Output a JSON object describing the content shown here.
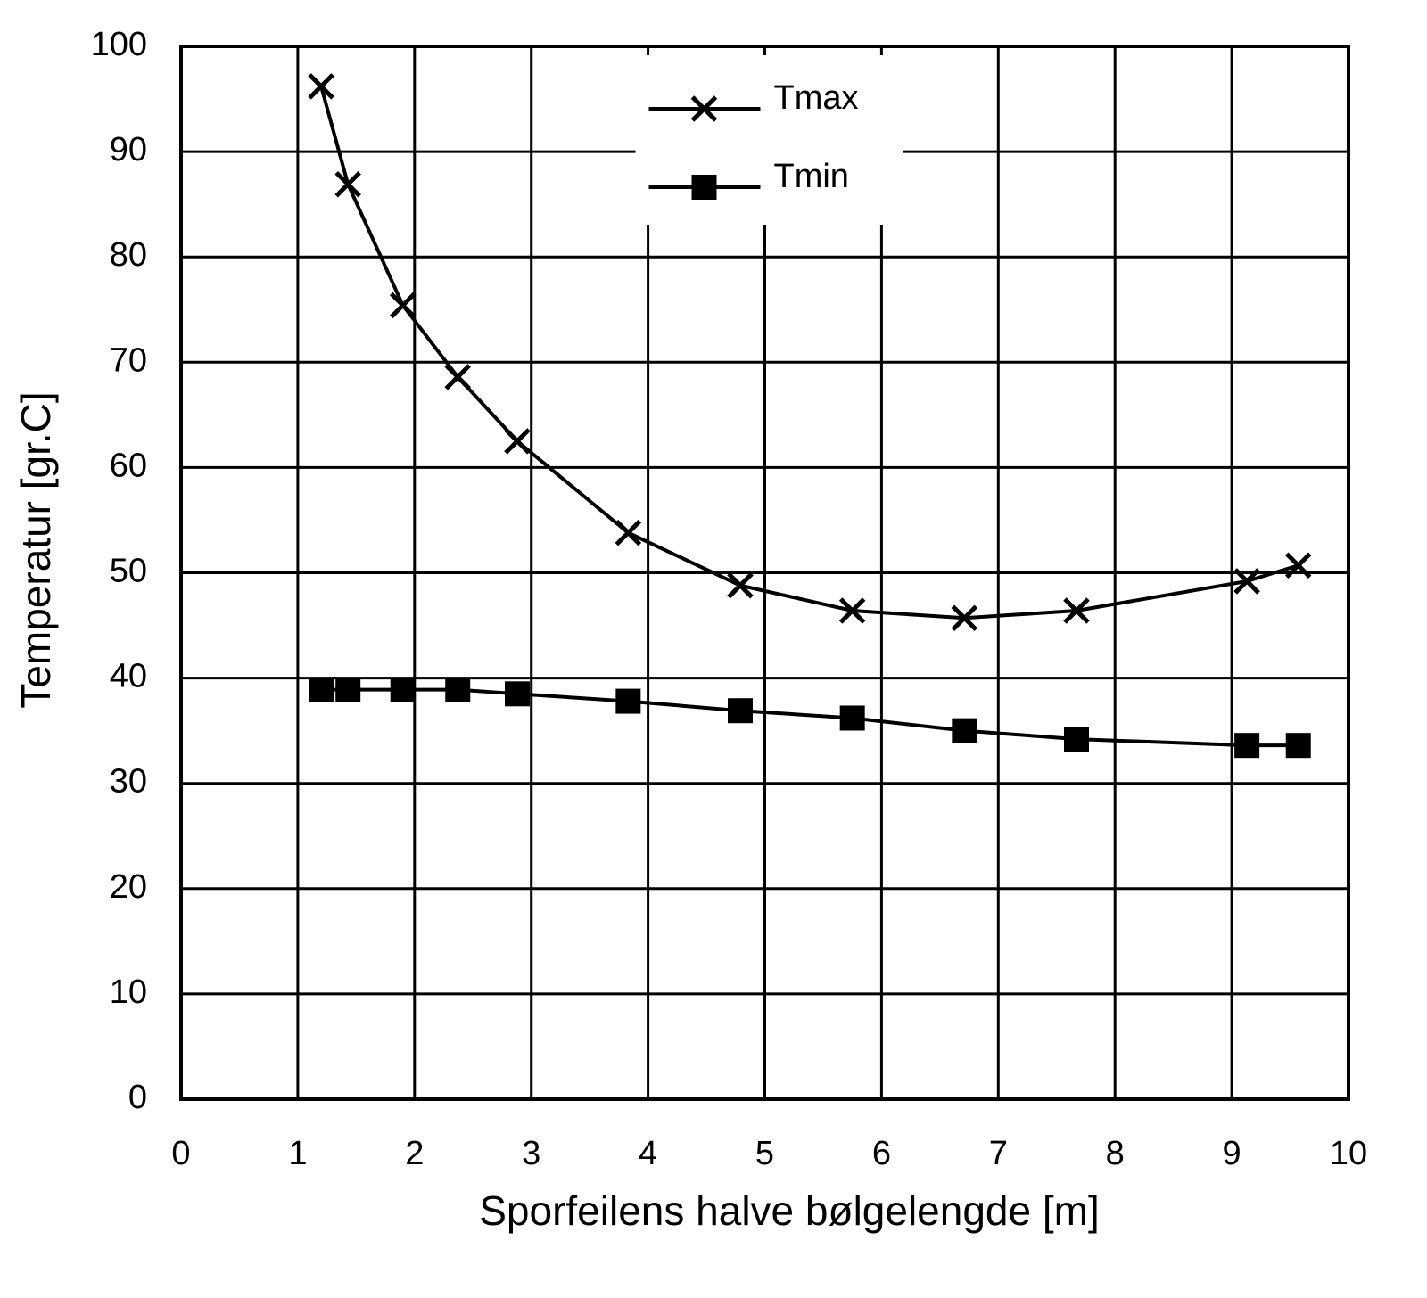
{
  "chart_data": {
    "type": "line",
    "xlabel": "Sporfeilens halve bølgelengde [m]",
    "ylabel": "Temperatur [gr.C]",
    "x": [
      1.2,
      1.43,
      1.9,
      2.37,
      2.88,
      3.83,
      4.79,
      5.75,
      6.71,
      7.67,
      9.13,
      9.57
    ],
    "series": [
      {
        "name": "Tmax",
        "color": "#000000",
        "marker": "x",
        "values": [
          96.2,
          86.9,
          75.4,
          68.6,
          62.5,
          53.8,
          48.8,
          46.4,
          45.7,
          46.4,
          49.2,
          50.7
        ]
      },
      {
        "name": "Tmin",
        "color": "#000000",
        "marker": "square",
        "values": [
          38.9,
          38.9,
          38.9,
          38.9,
          38.5,
          37.8,
          36.9,
          36.2,
          35.0,
          34.2,
          33.6,
          33.6
        ]
      }
    ],
    "xlim": [
      0,
      10
    ],
    "xticks": [
      0,
      1,
      2,
      3,
      4,
      5,
      6,
      7,
      8,
      9,
      10
    ],
    "ylim": [
      0,
      100
    ],
    "yticks": [
      0,
      10,
      20,
      30,
      40,
      50,
      60,
      70,
      80,
      90,
      100
    ],
    "grid": true,
    "legend": "upper center"
  }
}
